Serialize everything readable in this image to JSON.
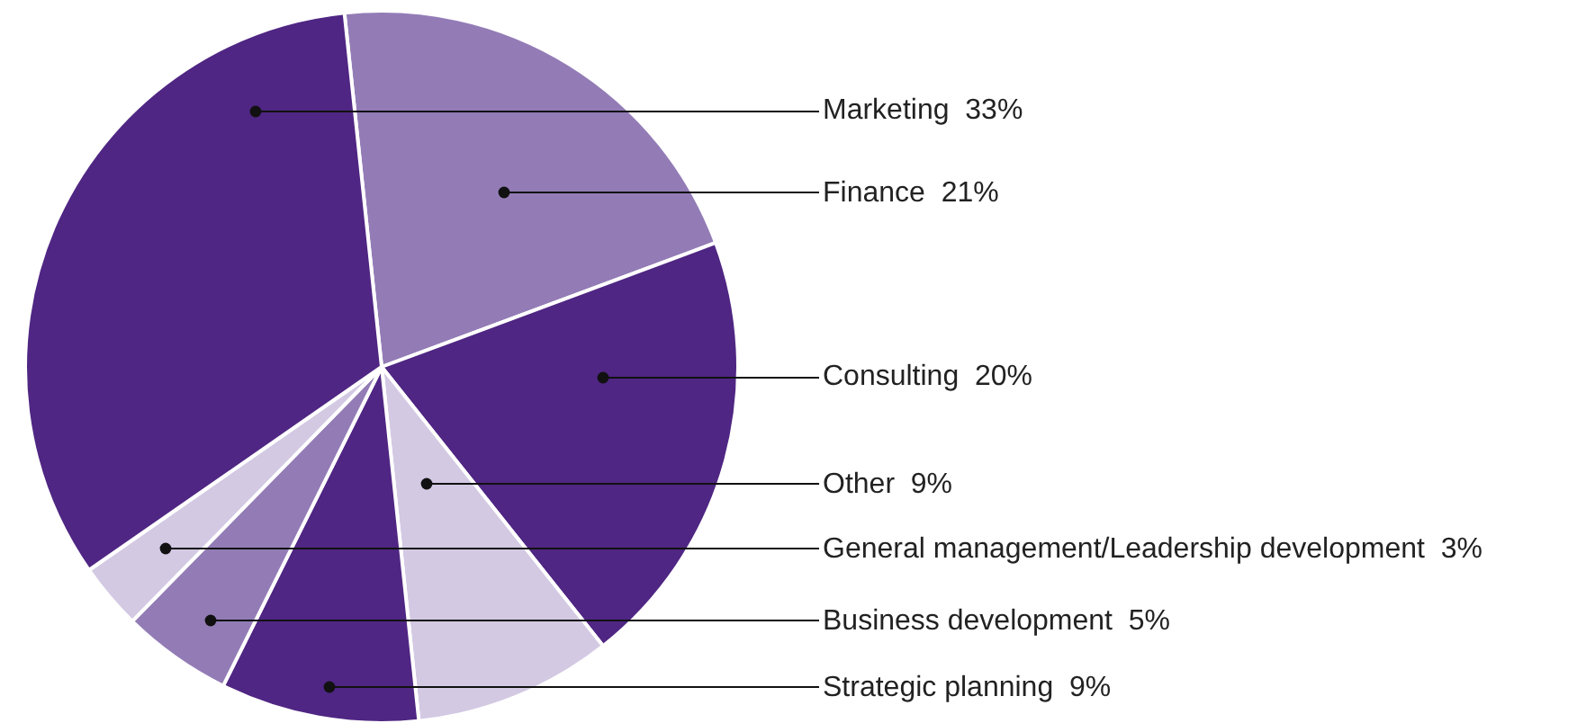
{
  "chart_data": {
    "type": "pie",
    "categories": [
      "Finance",
      "Consulting",
      "Other",
      "Strategic planning",
      "Business development",
      "General management/Leadership development",
      "Marketing"
    ],
    "values": [
      21,
      20,
      9,
      9,
      5,
      3,
      33
    ],
    "value_labels": [
      "21%",
      "20%",
      "9%",
      "9%",
      "5%",
      "3%",
      "33%"
    ],
    "colors": [
      "#937cb6",
      "#4f2683",
      "#d3c9e3",
      "#4f2683",
      "#937cb6",
      "#d3c9e3",
      "#4f2683"
    ]
  }
}
